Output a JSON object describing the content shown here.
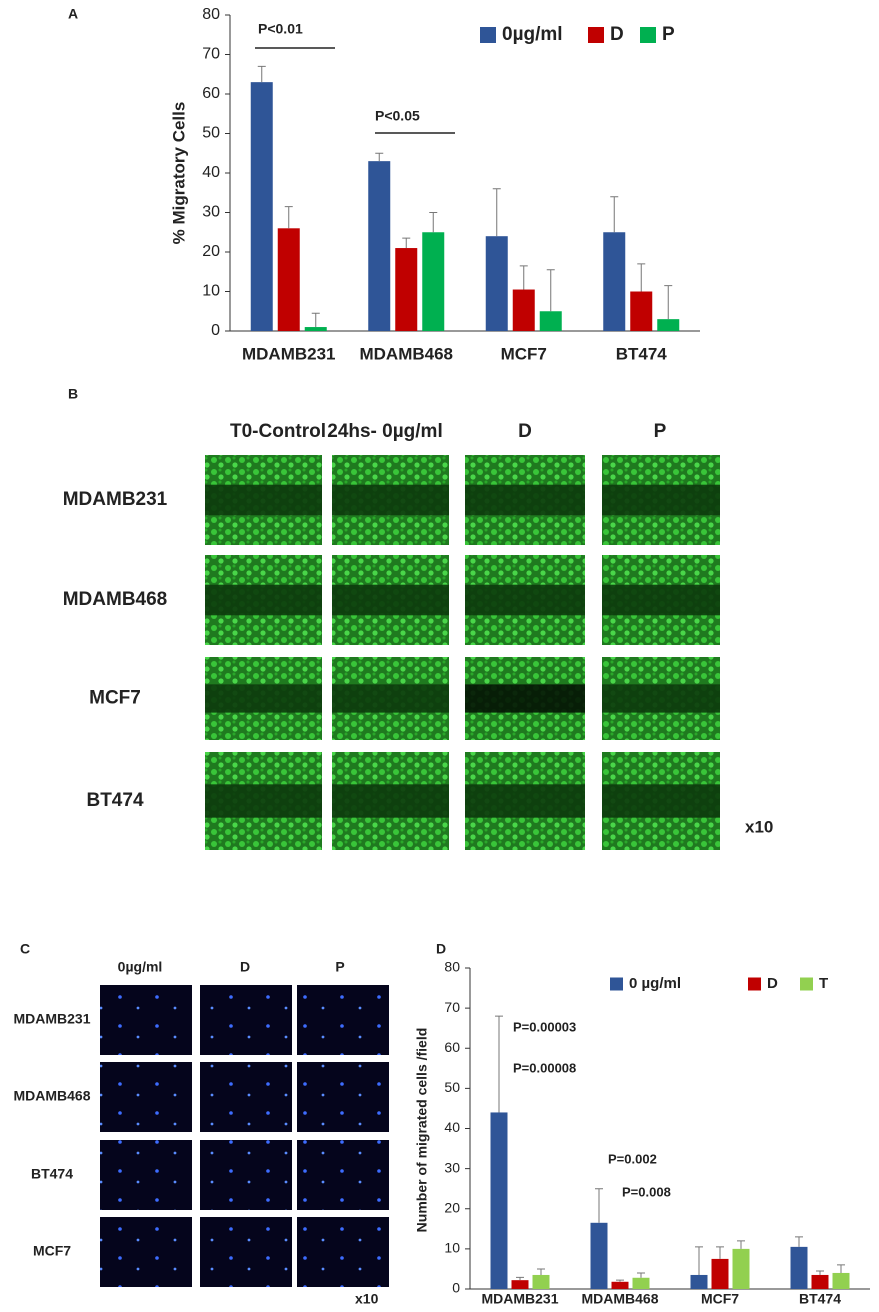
{
  "chart_data": [
    {
      "type": "bar",
      "panel": "A",
      "ylabel": "% Migratory Cells",
      "categories": [
        "MDAMB231",
        "MDAMB468",
        "MCF7",
        "BT474"
      ],
      "series": [
        {
          "name": "0µg/ml",
          "color": "#2f5597",
          "values": [
            63,
            43,
            24,
            25
          ],
          "errors": [
            4,
            2,
            12,
            9
          ]
        },
        {
          "name": "D",
          "color": "#c00000",
          "values": [
            26,
            21,
            10.5,
            10
          ],
          "errors": [
            5.5,
            2.5,
            6,
            7
          ]
        },
        {
          "name": "P",
          "color": "#00b050",
          "values": [
            1,
            25,
            5,
            3
          ],
          "errors": [
            3.5,
            5,
            10.5,
            8.5
          ]
        }
      ],
      "annotations": [
        "P<0.01",
        "P<0.05"
      ],
      "ylim": [
        0,
        80
      ],
      "yticks": [
        0,
        10,
        20,
        30,
        40,
        50,
        60,
        70,
        80
      ]
    },
    {
      "type": "bar",
      "panel": "D",
      "ylabel": "Number of migrated cells /field",
      "categories": [
        "MDAMB231",
        "MDAMB468",
        "MCF7",
        "BT474"
      ],
      "series": [
        {
          "name": "0 µg/ml",
          "color": "#2f5597",
          "values": [
            44,
            16.5,
            3.5,
            10.5
          ],
          "errors": [
            24,
            8.5,
            7,
            2.5
          ]
        },
        {
          "name": "D",
          "color": "#c00000",
          "values": [
            2.2,
            1.8,
            7.5,
            3.5
          ],
          "errors": [
            0.7,
            0.4,
            3,
            1
          ]
        },
        {
          "name": "T",
          "color": "#92d050",
          "values": [
            3.5,
            2.8,
            10,
            4
          ],
          "errors": [
            1.5,
            1.2,
            2,
            2
          ]
        }
      ],
      "annotations": [
        "P=0.00003",
        "P=0.00008",
        "P=0.002",
        "P=0.008"
      ],
      "ylim": [
        0,
        80
      ],
      "yticks": [
        0,
        10,
        20,
        30,
        40,
        50,
        60,
        70,
        80
      ]
    }
  ],
  "panel_b": {
    "label": "B",
    "columns": [
      "T0-Control",
      "24hs- 0µg/ml",
      "D",
      "P"
    ],
    "rows": [
      "MDAMB231",
      "MDAMB468",
      "MCF7",
      "BT474"
    ],
    "magnification": "x10"
  },
  "panel_c": {
    "label": "C",
    "columns": [
      "0µg/ml",
      "D",
      "P"
    ],
    "rows": [
      "MDAMB231",
      "MDAMB468",
      "BT474",
      "MCF7"
    ],
    "magnification": "x10"
  }
}
